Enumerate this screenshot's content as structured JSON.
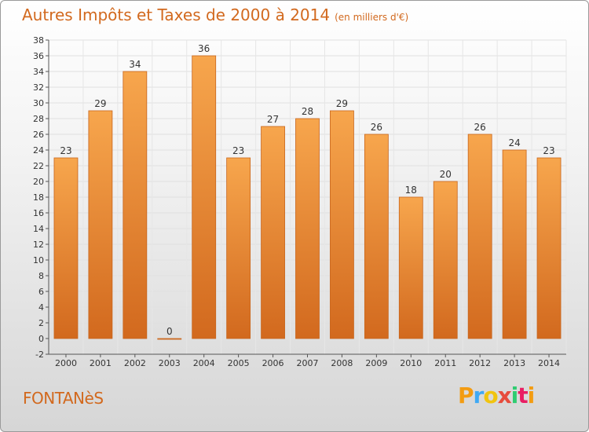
{
  "header": {
    "title": "Autres Impôts et Taxes de 2000 à 2014",
    "unit": "(en milliers d'€)"
  },
  "footer": {
    "place": "FONTANèS",
    "logo": [
      "P",
      "r",
      "o",
      "x",
      "i",
      "t",
      "i"
    ],
    "logo_colors": [
      "#f39c12",
      "#3fa9f5",
      "#f1c40f",
      "#e74c3c",
      "#2ecc71",
      "#e91e63",
      "#f39c12"
    ]
  },
  "chart_data": {
    "type": "bar",
    "title": "Autres Impôts et Taxes de 2000 à 2014",
    "subtitle": "(en milliers d'€)",
    "categories": [
      "2000",
      "2001",
      "2002",
      "2003",
      "2004",
      "2005",
      "2006",
      "2007",
      "2008",
      "2009",
      "2010",
      "2011",
      "2012",
      "2013",
      "2014"
    ],
    "values": [
      23,
      29,
      34,
      0,
      36,
      23,
      27,
      28,
      29,
      26,
      18,
      20,
      26,
      24,
      23
    ],
    "ylim": [
      -2,
      38
    ],
    "yticks": [
      -2,
      0,
      2,
      4,
      6,
      8,
      10,
      12,
      14,
      16,
      18,
      20,
      22,
      24,
      26,
      28,
      30,
      32,
      34,
      36,
      38
    ],
    "grid": true,
    "bar_color_top": "#f7a64d",
    "bar_color_bottom": "#d2691e"
  }
}
